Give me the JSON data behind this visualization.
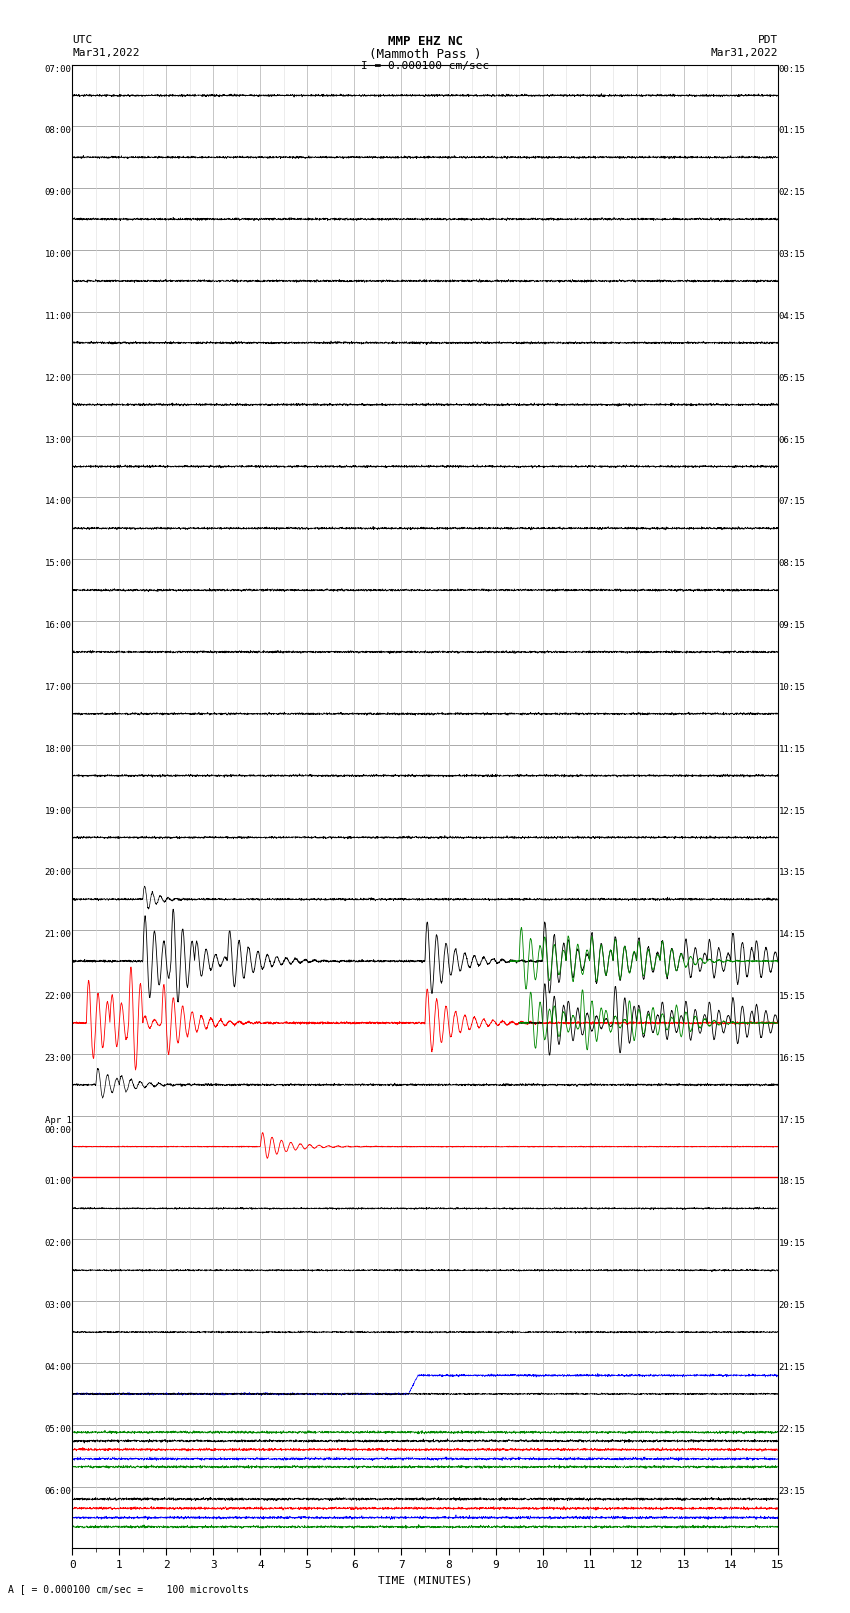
{
  "title_line1": "MMP EHZ NC",
  "title_line2": "(Mammoth Pass )",
  "title_line3": "I = 0.000100 cm/sec",
  "left_header1": "UTC",
  "left_header2": "Mar31,2022",
  "right_header1": "PDT",
  "right_header2": "Mar31,2022",
  "bottom_label": "TIME (MINUTES)",
  "bottom_note": "A [ = 0.000100 cm/sec =    100 microvolts",
  "utc_labels": [
    "07:00",
    "08:00",
    "09:00",
    "10:00",
    "11:00",
    "12:00",
    "13:00",
    "14:00",
    "15:00",
    "16:00",
    "17:00",
    "18:00",
    "19:00",
    "20:00",
    "21:00",
    "22:00",
    "23:00",
    "Apr 1\n00:00",
    "01:00",
    "02:00",
    "03:00",
    "04:00",
    "05:00",
    "06:00"
  ],
  "pdt_labels": [
    "00:15",
    "01:15",
    "02:15",
    "03:15",
    "04:15",
    "05:15",
    "06:15",
    "07:15",
    "08:15",
    "09:15",
    "10:15",
    "11:15",
    "12:15",
    "13:15",
    "14:15",
    "15:15",
    "16:15",
    "17:15",
    "18:15",
    "19:15",
    "20:15",
    "21:15",
    "22:15",
    "23:15"
  ],
  "xmin": 0,
  "xmax": 15,
  "xticks": [
    0,
    1,
    2,
    3,
    4,
    5,
    6,
    7,
    8,
    9,
    10,
    11,
    12,
    13,
    14,
    15
  ],
  "bg_color": "#ffffff",
  "grid_major_color": "#aaaaaa",
  "grid_minor_color": "#dddddd",
  "trace_black": "#000000",
  "trace_red": "#ff0000",
  "trace_blue": "#0000ff",
  "trace_green": "#008800"
}
